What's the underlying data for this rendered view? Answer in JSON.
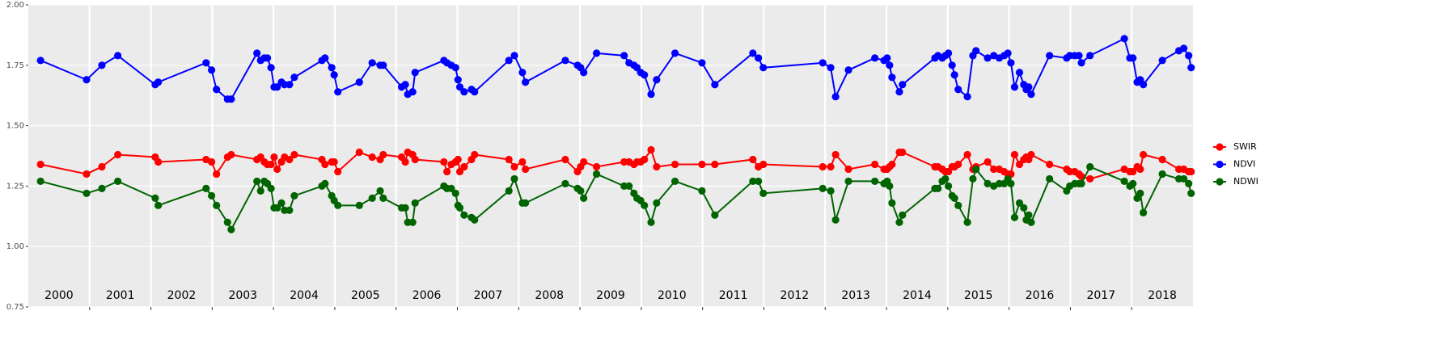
{
  "chart_data": {
    "type": "line",
    "x": [
      2000.2,
      2000.95,
      2001.2,
      2001.46,
      2002.07,
      2002.12,
      2002.9,
      2002.99,
      2003.07,
      2003.25,
      2003.31,
      2003.73,
      2003.79,
      2003.85,
      2003.9,
      2003.96,
      2004.01,
      2004.06,
      2004.13,
      2004.18,
      2004.26,
      2004.34,
      2004.79,
      2004.84,
      2004.95,
      2004.99,
      2005.05,
      2005.4,
      2005.61,
      2005.74,
      2005.79,
      2006.09,
      2006.15,
      2006.19,
      2006.27,
      2006.31,
      2006.78,
      2006.83,
      2006.9,
      2006.97,
      2007.01,
      2007.04,
      2007.11,
      2007.23,
      2007.28,
      2007.84,
      2007.93,
      2008.06,
      2008.11,
      2008.76,
      2008.96,
      2009.01,
      2009.06,
      2009.27,
      2009.72,
      2009.8,
      2009.88,
      2009.93,
      2009.99,
      2010.05,
      2010.16,
      2010.25,
      2010.55,
      2010.99,
      2011.2,
      2011.82,
      2011.91,
      2011.99,
      2012.96,
      2013.09,
      2013.17,
      2013.38,
      2013.81,
      2013.96,
      2014.01,
      2014.05,
      2014.09,
      2014.21,
      2014.26,
      2014.79,
      2014.84,
      2014.91,
      2014.96,
      2015.01,
      2015.07,
      2015.11,
      2015.17,
      2015.32,
      2015.41,
      2015.46,
      2015.65,
      2015.75,
      2015.84,
      2015.92,
      2015.98,
      2016.03,
      2016.09,
      2016.17,
      2016.24,
      2016.28,
      2016.32,
      2016.36,
      2016.66,
      2016.94,
      2016.99,
      2017.07,
      2017.14,
      2017.18,
      2017.32,
      2017.88,
      2017.97,
      2018.02,
      2018.09,
      2018.14,
      2018.19,
      2018.5,
      2018.77,
      2018.85,
      2018.93,
      2018.97
    ],
    "series": [
      {
        "name": "SWIR",
        "color": "#ff0000",
        "values": [
          1.34,
          1.3,
          1.33,
          1.38,
          1.37,
          1.35,
          1.36,
          1.35,
          1.3,
          1.37,
          1.38,
          1.36,
          1.37,
          1.35,
          1.34,
          1.34,
          1.37,
          1.32,
          1.35,
          1.37,
          1.36,
          1.38,
          1.36,
          1.34,
          1.35,
          1.35,
          1.31,
          1.39,
          1.37,
          1.36,
          1.38,
          1.37,
          1.35,
          1.39,
          1.38,
          1.36,
          1.35,
          1.31,
          1.34,
          1.35,
          1.36,
          1.31,
          1.33,
          1.36,
          1.38,
          1.36,
          1.33,
          1.35,
          1.32,
          1.36,
          1.31,
          1.33,
          1.35,
          1.33,
          1.35,
          1.35,
          1.34,
          1.35,
          1.35,
          1.36,
          1.4,
          1.33,
          1.34,
          1.34,
          1.34,
          1.36,
          1.33,
          1.34,
          1.33,
          1.33,
          1.38,
          1.32,
          1.34,
          1.32,
          1.32,
          1.33,
          1.34,
          1.39,
          1.39,
          1.33,
          1.33,
          1.32,
          1.31,
          1.31,
          1.33,
          1.33,
          1.34,
          1.38,
          1.32,
          1.33,
          1.35,
          1.32,
          1.32,
          1.31,
          1.3,
          1.3,
          1.38,
          1.34,
          1.36,
          1.37,
          1.36,
          1.38,
          1.34,
          1.32,
          1.31,
          1.31,
          1.3,
          1.29,
          1.28,
          1.32,
          1.31,
          1.31,
          1.33,
          1.32,
          1.38,
          1.36,
          1.32,
          1.32,
          1.31,
          1.31
        ]
      },
      {
        "name": "NDVI",
        "color": "#0000ff",
        "values": [
          1.77,
          1.69,
          1.75,
          1.79,
          1.67,
          1.68,
          1.76,
          1.73,
          1.65,
          1.61,
          1.61,
          1.8,
          1.77,
          1.78,
          1.78,
          1.74,
          1.66,
          1.66,
          1.68,
          1.67,
          1.67,
          1.7,
          1.77,
          1.78,
          1.74,
          1.71,
          1.64,
          1.68,
          1.76,
          1.75,
          1.75,
          1.66,
          1.67,
          1.63,
          1.64,
          1.72,
          1.77,
          1.76,
          1.75,
          1.74,
          1.69,
          1.66,
          1.64,
          1.65,
          1.64,
          1.77,
          1.79,
          1.72,
          1.68,
          1.77,
          1.75,
          1.74,
          1.72,
          1.8,
          1.79,
          1.76,
          1.75,
          1.74,
          1.72,
          1.71,
          1.63,
          1.69,
          1.8,
          1.76,
          1.67,
          1.8,
          1.78,
          1.74,
          1.76,
          1.74,
          1.62,
          1.73,
          1.78,
          1.77,
          1.78,
          1.75,
          1.7,
          1.64,
          1.67,
          1.78,
          1.79,
          1.78,
          1.79,
          1.8,
          1.75,
          1.71,
          1.65,
          1.62,
          1.79,
          1.81,
          1.78,
          1.79,
          1.78,
          1.79,
          1.8,
          1.76,
          1.66,
          1.72,
          1.67,
          1.65,
          1.66,
          1.63,
          1.79,
          1.78,
          1.79,
          1.79,
          1.79,
          1.76,
          1.79,
          1.86,
          1.78,
          1.78,
          1.68,
          1.69,
          1.67,
          1.77,
          1.81,
          1.82,
          1.79,
          1.74
        ]
      },
      {
        "name": "NDWI",
        "color": "#006400",
        "values": [
          1.27,
          1.22,
          1.24,
          1.27,
          1.2,
          1.17,
          1.24,
          1.21,
          1.17,
          1.1,
          1.07,
          1.27,
          1.23,
          1.27,
          1.26,
          1.24,
          1.16,
          1.16,
          1.18,
          1.15,
          1.15,
          1.21,
          1.25,
          1.26,
          1.21,
          1.19,
          1.17,
          1.17,
          1.2,
          1.23,
          1.2,
          1.16,
          1.16,
          1.1,
          1.1,
          1.18,
          1.25,
          1.24,
          1.24,
          1.22,
          1.17,
          1.16,
          1.13,
          1.12,
          1.11,
          1.23,
          1.28,
          1.18,
          1.18,
          1.26,
          1.24,
          1.23,
          1.2,
          1.3,
          1.25,
          1.25,
          1.22,
          1.2,
          1.19,
          1.17,
          1.1,
          1.18,
          1.27,
          1.23,
          1.13,
          1.27,
          1.27,
          1.22,
          1.24,
          1.23,
          1.11,
          1.27,
          1.27,
          1.26,
          1.27,
          1.25,
          1.18,
          1.1,
          1.13,
          1.24,
          1.24,
          1.27,
          1.28,
          1.25,
          1.21,
          1.2,
          1.17,
          1.1,
          1.28,
          1.32,
          1.26,
          1.25,
          1.26,
          1.26,
          1.28,
          1.26,
          1.12,
          1.18,
          1.16,
          1.11,
          1.13,
          1.1,
          1.28,
          1.23,
          1.25,
          1.26,
          1.26,
          1.26,
          1.33,
          1.27,
          1.25,
          1.26,
          1.2,
          1.22,
          1.14,
          1.3,
          1.28,
          1.28,
          1.26,
          1.22
        ]
      }
    ],
    "xlim": [
      2000,
      2019
    ],
    "ylim": [
      0.75,
      2.0
    ],
    "yticks": [
      0.75,
      {
        "value": 1.0,
        "label": "1.00"
      },
      1.25,
      {
        "value": 1.5,
        "label": "1.50"
      },
      1.75,
      {
        "value": 2.0,
        "label": "2.00"
      }
    ],
    "xgrid": [
      2001,
      2002,
      2003,
      2004,
      2005,
      2006,
      2007,
      2008,
      2009,
      2010,
      2011,
      2012,
      2013,
      2014,
      2015,
      2016,
      2017,
      2018
    ],
    "xticks": [
      {
        "value": 2000.5,
        "label": "2000"
      },
      {
        "value": 2001.5,
        "label": "2001"
      },
      {
        "value": 2002.5,
        "label": "2002"
      },
      {
        "value": 2003.5,
        "label": "2003"
      },
      {
        "value": 2004.5,
        "label": "2004"
      },
      {
        "value": 2005.5,
        "label": "2005"
      },
      {
        "value": 2006.5,
        "label": "2006"
      },
      {
        "value": 2007.5,
        "label": "2007"
      },
      {
        "value": 2008.5,
        "label": "2008"
      },
      {
        "value": 2009.5,
        "label": "2009"
      },
      {
        "value": 2010.5,
        "label": "2010"
      },
      {
        "value": 2011.5,
        "label": "2011"
      },
      {
        "value": 2012.5,
        "label": "2012"
      },
      {
        "value": 2013.5,
        "label": "2013"
      },
      {
        "value": 2014.5,
        "label": "2014"
      },
      {
        "value": 2015.5,
        "label": "2015"
      },
      {
        "value": 2016.5,
        "label": "2016"
      },
      {
        "value": 2017.5,
        "label": "2017"
      },
      {
        "value": 2018.5,
        "label": "2018"
      }
    ],
    "grid": true
  }
}
